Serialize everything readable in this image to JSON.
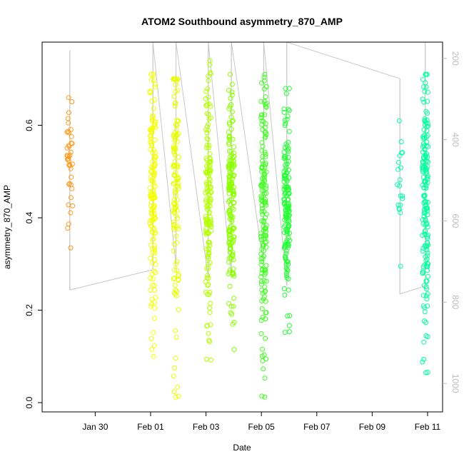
{
  "chart_data": {
    "type": "scatter",
    "title": "ATOM2 Southbound asymmetry_870_AMP",
    "xlabel": "Date",
    "ylabel": "asymmetry_870_AMP",
    "x_axis_type": "date",
    "xlim": [
      "2019-01-28T02:00",
      "2019-02-11T13:00"
    ],
    "ylim": [
      -0.02,
      0.78
    ],
    "x_ticks": [
      {
        "date": "2019-01-30",
        "label": "Jan 30"
      },
      {
        "date": "2019-02-01",
        "label": "Feb 01"
      },
      {
        "date": "2019-02-03",
        "label": "Feb 03"
      },
      {
        "date": "2019-02-05",
        "label": "Feb 05"
      },
      {
        "date": "2019-02-07",
        "label": "Feb 07"
      },
      {
        "date": "2019-02-09",
        "label": "Feb 09"
      },
      {
        "date": "2019-02-11",
        "label": "Feb 11"
      }
    ],
    "y_ticks": [
      {
        "value": 0.0,
        "label": "0.0"
      },
      {
        "value": 0.2,
        "label": "0.2"
      },
      {
        "value": 0.4,
        "label": "0.4"
      },
      {
        "value": 0.6,
        "label": "0.6"
      }
    ],
    "y2": {
      "description": "depth (inverted)",
      "range": [
        1070,
        160
      ],
      "ticks": [
        {
          "value": 200,
          "label": "200"
        },
        {
          "value": 400,
          "label": "400"
        },
        {
          "value": 600,
          "label": "600"
        },
        {
          "value": 800,
          "label": "800"
        },
        {
          "value": 1000,
          "label": "1000"
        }
      ],
      "line_color": "#c8c8c8",
      "tick_color": "#bdbdbd"
    },
    "grid": false,
    "legend": "none",
    "marker": "open-circle",
    "color_scale": [
      "#ff8c00",
      "#ffd000",
      "#f2ff00",
      "#c8ff00",
      "#7dff00",
      "#2eff2e",
      "#00ff66",
      "#00ffa0"
    ],
    "casts": [
      {
        "date": "2019-01-29T02:00",
        "color": "#ff9a1a",
        "n": 40,
        "y_min": 0.335,
        "y_max": 0.66,
        "y_center": 0.52,
        "depth_min": 180,
        "depth_max": 770
      },
      {
        "date": "2019-02-01T02:00",
        "color": "#f4ff00",
        "n": 150,
        "y_min": 0.1,
        "y_max": 0.71,
        "y_center": 0.46,
        "depth_min": 160,
        "depth_max": 720
      },
      {
        "date": "2019-02-01T22:00",
        "color": "#e6ff00",
        "n": 130,
        "y_min": 0.012,
        "y_max": 0.7,
        "y_center": 0.48,
        "depth_min": 160,
        "depth_max": 710
      },
      {
        "date": "2019-02-03T02:00",
        "color": "#b4ff00",
        "n": 150,
        "y_min": 0.092,
        "y_max": 0.74,
        "y_center": 0.44,
        "depth_min": 160,
        "depth_max": 740
      },
      {
        "date": "2019-02-03T22:00",
        "color": "#8cff00",
        "n": 170,
        "y_min": 0.115,
        "y_max": 0.71,
        "y_center": 0.43,
        "depth_min": 160,
        "depth_max": 740
      },
      {
        "date": "2019-02-05T02:00",
        "color": "#40ff20",
        "n": 160,
        "y_min": 0.012,
        "y_max": 0.71,
        "y_center": 0.42,
        "depth_min": 160,
        "depth_max": 710
      },
      {
        "date": "2019-02-05T22:00",
        "color": "#22ff33",
        "n": 150,
        "y_min": 0.152,
        "y_max": 0.68,
        "y_center": 0.44,
        "depth_min": 160,
        "depth_max": 760
      },
      {
        "date": "2019-02-10T00:00",
        "color": "#00ffaa",
        "n": 20,
        "y_min": 0.295,
        "y_max": 0.61,
        "y_center": 0.5,
        "depth_min": 250,
        "depth_max": 780
      },
      {
        "date": "2019-02-10T22:00",
        "color": "#00ff9c",
        "n": 170,
        "y_min": 0.065,
        "y_max": 0.71,
        "y_center": 0.45,
        "depth_min": 160,
        "depth_max": 760
      }
    ],
    "track": [
      {
        "date": "2019-01-29T02:00",
        "depth": 180
      },
      {
        "date": "2019-01-29T02:00",
        "depth": 770
      },
      {
        "date": "2019-02-01T02:00",
        "depth": 720
      },
      {
        "date": "2019-02-01T02:00",
        "depth": 160
      },
      {
        "date": "2019-02-01T22:00",
        "depth": 710
      },
      {
        "date": "2019-02-01T22:00",
        "depth": 160
      },
      {
        "date": "2019-02-03T02:00",
        "depth": 740
      },
      {
        "date": "2019-02-03T02:00",
        "depth": 160
      },
      {
        "date": "2019-02-03T22:00",
        "depth": 740
      },
      {
        "date": "2019-02-03T22:00",
        "depth": 160
      },
      {
        "date": "2019-02-05T02:00",
        "depth": 710
      },
      {
        "date": "2019-02-05T02:00",
        "depth": 160
      },
      {
        "date": "2019-02-05T22:00",
        "depth": 760
      },
      {
        "date": "2019-02-05T22:00",
        "depth": 160
      },
      {
        "date": "2019-02-10T00:00",
        "depth": 250
      },
      {
        "date": "2019-02-10T00:00",
        "depth": 780
      },
      {
        "date": "2019-02-10T22:00",
        "depth": 760
      },
      {
        "date": "2019-02-10T22:00",
        "depth": 160
      }
    ]
  }
}
